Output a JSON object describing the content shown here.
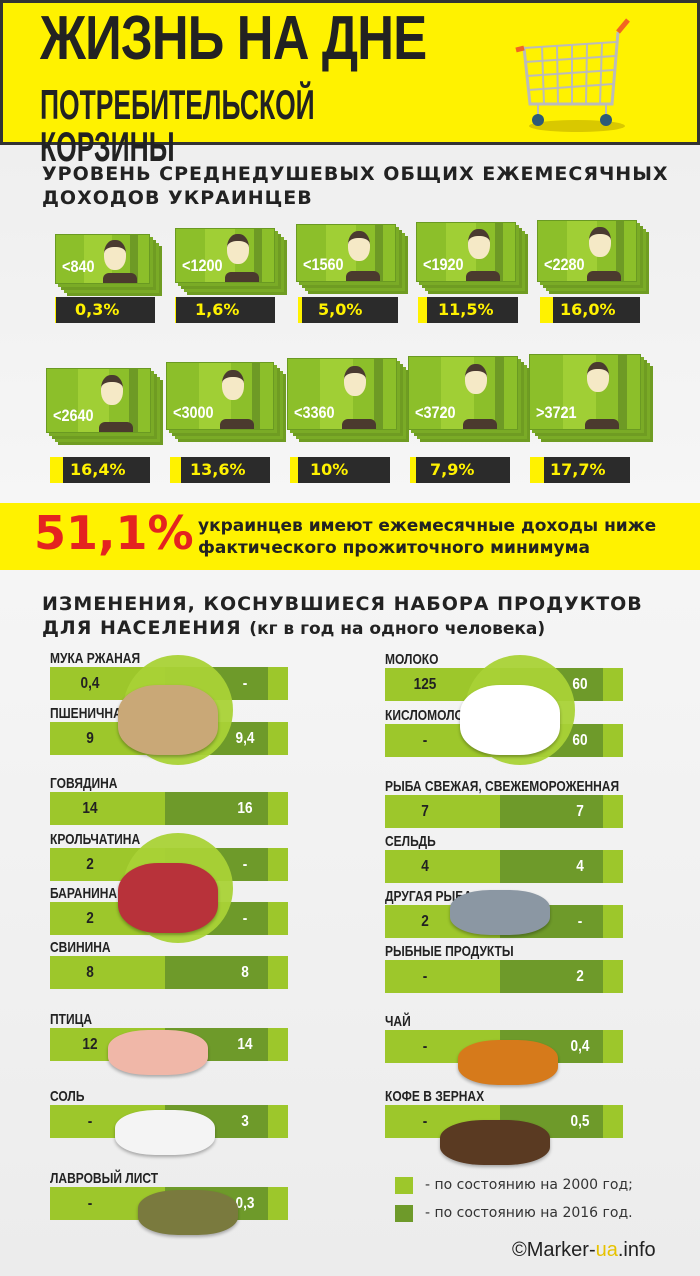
{
  "header": {
    "title_line1": "ЖИЗНЬ НА ДНЕ",
    "title_line2": "ПОТРЕБИТЕЛЬСКОЙ КОРЗИНЫ",
    "icon": "shopping-cart-icon"
  },
  "income": {
    "title_line1": "УРОВЕНЬ СРЕДНЕДУШЕВЫХ ОБЩИХ ЕЖЕМЕСЯЧНЫХ",
    "title_line2": "ДОХОДОВ УКРАИНЦЕВ",
    "items": [
      {
        "amount": "<840",
        "percent": "0,3%",
        "share": 0.3
      },
      {
        "amount": "<1200",
        "percent": "1,6%",
        "share": 1.6
      },
      {
        "amount": "<1560",
        "percent": "5,0%",
        "share": 5.0
      },
      {
        "amount": "<1920",
        "percent": "11,5%",
        "share": 11.5
      },
      {
        "amount": "<2280",
        "percent": "16,0%",
        "share": 16.0
      },
      {
        "amount": "<2640",
        "percent": "16,4%",
        "share": 16.4
      },
      {
        "amount": "<3000",
        "percent": "13,6%",
        "share": 13.6
      },
      {
        "amount": "<3360",
        "percent": "10%",
        "share": 10
      },
      {
        "amount": "<3720",
        "percent": "7,9%",
        "share": 7.9
      },
      {
        "amount": ">3721",
        "percent": "17,7%",
        "share": 17.7
      }
    ]
  },
  "highlight": {
    "value": "51,1%",
    "text_line1": "украинцев имеют ежемесячные доходы ниже",
    "text_line2": "фактического прожиточного минимума"
  },
  "products": {
    "title_line1": "ИЗМЕНЕНИЯ, КОСНУВШИЕСЯ НАБОРА ПРОДУКТОВ",
    "title_line2": "ДЛЯ НАСЕЛЕНИЯ",
    "title_note": "(кг в год на одного человека)",
    "colors": {
      "y2000": "#9dc72b",
      "y2016": "#6e9a2a"
    },
    "left": [
      {
        "name": "МУКА РЖАНАЯ",
        "v2000": "0,4",
        "v2016": "-"
      },
      {
        "name": "ПШЕНИЧНАЯ",
        "v2000": "9",
        "v2016": "9,4"
      },
      {
        "name": "ГОВЯДИНА",
        "v2000": "14",
        "v2016": "16"
      },
      {
        "name": "КРОЛЬЧАТИНА",
        "v2000": "2",
        "v2016": "-"
      },
      {
        "name": "БАРАНИНА",
        "v2000": "2",
        "v2016": "-"
      },
      {
        "name": "СВИНИНА",
        "v2000": "8",
        "v2016": "8"
      },
      {
        "name": "ПТИЦА",
        "v2000": "12",
        "v2016": "14"
      },
      {
        "name": "СОЛЬ",
        "v2000": "-",
        "v2016": "3"
      },
      {
        "name": "ЛАВРОВЫЙ ЛИСТ",
        "v2000": "-",
        "v2016": "0,3"
      }
    ],
    "right": [
      {
        "name": "МОЛОКО",
        "v2000": "125",
        "v2016": "60"
      },
      {
        "name": "КИСЛОМОЛОЧКА",
        "v2000": "-",
        "v2016": "60"
      },
      {
        "name": "РЫБА СВЕЖАЯ, СВЕЖЕМОРОЖЕННАЯ",
        "v2000": "7",
        "v2016": "7"
      },
      {
        "name": "СЕЛЬДЬ",
        "v2000": "4",
        "v2016": "4"
      },
      {
        "name": "ДРУГАЯ РЫБА",
        "v2000": "2",
        "v2016": "-"
      },
      {
        "name": "РЫБНЫЕ ПРОДУКТЫ",
        "v2000": "-",
        "v2016": "2"
      },
      {
        "name": "ЧАЙ",
        "v2000": "-",
        "v2016": "0,4"
      },
      {
        "name": "КОФЕ В ЗЕРНАХ",
        "v2000": "-",
        "v2016": "0,5"
      }
    ],
    "images": [
      "flour-sacks-image",
      "meat-image",
      "poultry-image",
      "salt-image",
      "bay-leaf-image",
      "milk-jug-image",
      "fish-image",
      "tea-cup-image",
      "coffee-beans-image"
    ]
  },
  "legend": {
    "y2000": "- по состоянию на 2000 год;",
    "y2016": "- по состоянию на 2016 год."
  },
  "copyright": {
    "prefix": "©Marker-",
    "ua": "ua",
    ".info": ".info"
  }
}
